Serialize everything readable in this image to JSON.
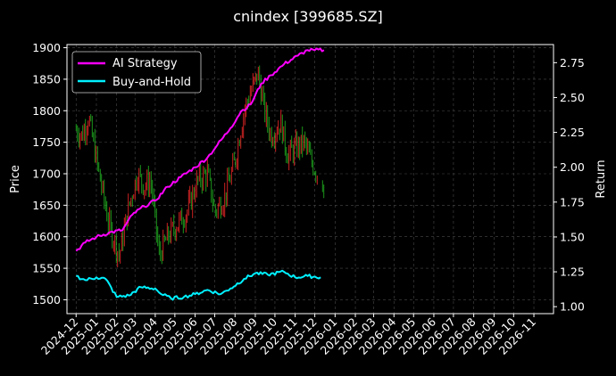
{
  "chart_data": {
    "type": "line",
    "title": "cnindex [399685.SZ]",
    "xlabel": "",
    "ylabel_left": "Price",
    "ylabel_right": "Return",
    "x_ticks": [
      "2024-12",
      "2025-01",
      "2025-02",
      "2025-03",
      "2025-04",
      "2025-05",
      "2025-06",
      "2025-07",
      "2025-08",
      "2025-09",
      "2025-10",
      "2025-11",
      "2025-12",
      "2026-01",
      "2026-02",
      "2026-03",
      "2026-04",
      "2026-05",
      "2026-06",
      "2026-07",
      "2026-08",
      "2026-09",
      "2026-10",
      "2026-11"
    ],
    "y_left_ticks": [
      1500,
      1550,
      1600,
      1650,
      1700,
      1750,
      1800,
      1850,
      1900
    ],
    "y_right_ticks": [
      "1.00",
      "1.25",
      "1.50",
      "1.75",
      "2.00",
      "2.25",
      "2.50",
      "2.75"
    ],
    "ylim_left": [
      1478,
      1905
    ],
    "ylim_right": [
      0.95,
      2.88
    ],
    "grid": true,
    "legend_position": "top-left",
    "colors": {
      "up": "#ff2a2a",
      "down": "#22bb22",
      "ai": "#ff00ff",
      "bh": "#00f0ff"
    },
    "series": [
      {
        "name": "AI Strategy",
        "axis": "right",
        "points": [
          [
            "2024-12-01",
            1.4
          ],
          [
            "2024-12-15",
            1.46
          ],
          [
            "2025-01-01",
            1.5
          ],
          [
            "2025-01-20",
            1.53
          ],
          [
            "2025-02-10",
            1.55
          ],
          [
            "2025-02-25",
            1.66
          ],
          [
            "2025-03-15",
            1.72
          ],
          [
            "2025-04-01",
            1.76
          ],
          [
            "2025-04-20",
            1.86
          ],
          [
            "2025-05-10",
            1.93
          ],
          [
            "2025-06-01",
            2.0
          ],
          [
            "2025-06-20",
            2.07
          ],
          [
            "2025-07-05",
            2.16
          ],
          [
            "2025-07-25",
            2.28
          ],
          [
            "2025-08-10",
            2.4
          ],
          [
            "2025-08-25",
            2.45
          ],
          [
            "2025-09-10",
            2.6
          ],
          [
            "2025-09-25",
            2.66
          ],
          [
            "2025-10-15",
            2.74
          ],
          [
            "2025-11-05",
            2.8
          ],
          [
            "2025-11-20",
            2.84
          ],
          [
            "2025-12-01",
            2.84
          ],
          [
            "2025-12-15",
            2.84
          ]
        ]
      },
      {
        "name": "Buy-and-Hold",
        "axis": "right",
        "points": [
          [
            "2024-12-01",
            1.22
          ],
          [
            "2024-12-15",
            1.19
          ],
          [
            "2025-01-01",
            1.21
          ],
          [
            "2025-01-15",
            1.2
          ],
          [
            "2025-02-01",
            1.07
          ],
          [
            "2025-02-20",
            1.08
          ],
          [
            "2025-03-10",
            1.14
          ],
          [
            "2025-04-01",
            1.13
          ],
          [
            "2025-04-10",
            1.09
          ],
          [
            "2025-04-25",
            1.06
          ],
          [
            "2025-05-15",
            1.07
          ],
          [
            "2025-06-01",
            1.09
          ],
          [
            "2025-06-20",
            1.12
          ],
          [
            "2025-07-10",
            1.09
          ],
          [
            "2025-07-25",
            1.13
          ],
          [
            "2025-08-15",
            1.2
          ],
          [
            "2025-09-01",
            1.24
          ],
          [
            "2025-09-20",
            1.23
          ],
          [
            "2025-10-15",
            1.25
          ],
          [
            "2025-11-01",
            1.21
          ],
          [
            "2025-11-20",
            1.22
          ],
          [
            "2025-12-10",
            1.21
          ]
        ]
      }
    ],
    "price_envelope": [
      [
        "2024-12-01",
        1770
      ],
      [
        "2024-12-10",
        1760
      ],
      [
        "2024-12-20",
        1790
      ],
      [
        "2025-01-05",
        1700
      ],
      [
        "2025-01-20",
        1620
      ],
      [
        "2025-02-05",
        1570
      ],
      [
        "2025-02-20",
        1650
      ],
      [
        "2025-03-05",
        1700
      ],
      [
        "2025-03-15",
        1680
      ],
      [
        "2025-03-25",
        1690
      ],
      [
        "2025-04-07",
        1570
      ],
      [
        "2025-04-20",
        1600
      ],
      [
        "2025-05-05",
        1620
      ],
      [
        "2025-05-20",
        1640
      ],
      [
        "2025-06-05",
        1690
      ],
      [
        "2025-06-20",
        1700
      ],
      [
        "2025-07-01",
        1640
      ],
      [
        "2025-07-15",
        1660
      ],
      [
        "2025-08-01",
        1720
      ],
      [
        "2025-08-15",
        1800
      ],
      [
        "2025-08-25",
        1830
      ],
      [
        "2025-09-05",
        1860
      ],
      [
        "2025-09-15",
        1800
      ],
      [
        "2025-09-25",
        1760
      ],
      [
        "2025-10-10",
        1780
      ],
      [
        "2025-10-20",
        1730
      ],
      [
        "2025-11-01",
        1740
      ],
      [
        "2025-11-15",
        1750
      ],
      [
        "2025-11-25",
        1720
      ],
      [
        "2025-12-05",
        1700
      ],
      [
        "2025-12-15",
        1680
      ]
    ]
  }
}
